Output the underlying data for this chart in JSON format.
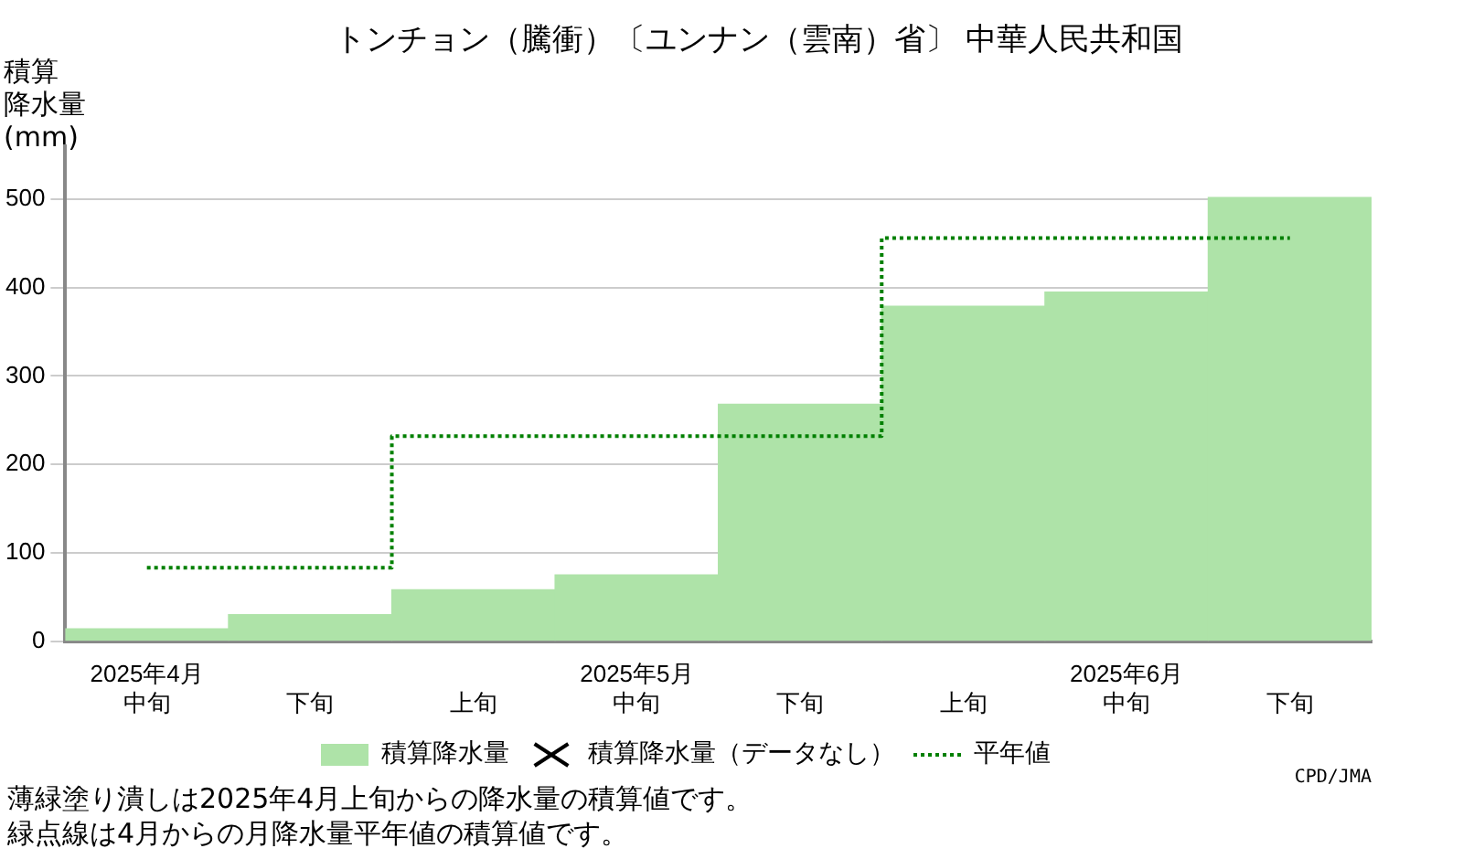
{
  "chart_data": {
    "type": "bar",
    "title": "トンチョン（騰衝）〔ユンナン（雲南）省〕 中華人民共和国",
    "ylabel": "積算降水量(mm)",
    "categories": [
      "2025年4月中旬",
      "下旬",
      "上旬",
      "2025年5月中旬",
      "下旬",
      "上旬",
      "2025年6月中旬",
      "下旬"
    ],
    "series": [
      {
        "name": "積算降水量",
        "color": "#aee3a8",
        "values": [
          14,
          30,
          58,
          75,
          268,
          379,
          395,
          502
        ]
      },
      {
        "name": "積算降水量（データなし）",
        "type": "scatter",
        "marker": "cross",
        "color": "#000000",
        "values": [
          null,
          null,
          null,
          null,
          null,
          null,
          null,
          null
        ]
      },
      {
        "name": "平年値",
        "type": "step",
        "color": "#008000",
        "line_style": "dotted",
        "values": [
          83,
          83,
          232,
          232,
          232,
          456,
          456,
          456
        ]
      }
    ],
    "ylim": [
      0,
      560
    ],
    "yticks": [
      0,
      100,
      200,
      300,
      400,
      500
    ],
    "grid": "y",
    "legend": "bottom",
    "annotations": [
      "CPD/JMA",
      "薄緑塗り潰しは2025年4月上旬からの降水量の積算値です。",
      "緑点線は4月からの月降水量平年値の積算値です。"
    ]
  }
}
